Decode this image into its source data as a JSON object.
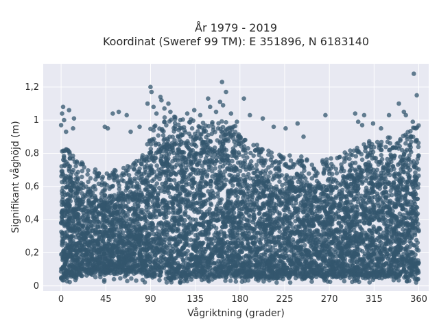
{
  "chart_data": {
    "type": "scatter",
    "title": "År 1979 - 2019",
    "subtitle": "Koordinat (Sweref 99 TM): E 351896, N 6183140",
    "xlabel": "Vågriktning (grader)",
    "ylabel": "Signifikant våghöjd (m)",
    "xlim": [
      -18,
      370
    ],
    "ylim": [
      -0.03,
      1.34
    ],
    "xticks": [
      0,
      45,
      90,
      135,
      180,
      225,
      270,
      315,
      360
    ],
    "xtick_labels": [
      "0",
      "45",
      "90",
      "135",
      "180",
      "225",
      "270",
      "315",
      "360"
    ],
    "yticks": [
      0,
      0.2,
      0.4,
      0.6,
      0.8,
      1,
      1.2
    ],
    "ytick_labels": [
      "0",
      "0,2",
      "0,4",
      "0,6",
      "0,8",
      "1",
      "1,2"
    ],
    "grid": true,
    "legend": "none",
    "marker_color": "#33566e",
    "background_color": "#e8e9f2",
    "dense_envelope": {
      "x": [
        0,
        10,
        20,
        30,
        45,
        60,
        75,
        85,
        90,
        100,
        110,
        125,
        135,
        150,
        165,
        175,
        180,
        190,
        200,
        215,
        225,
        240,
        250,
        260,
        270,
        285,
        300,
        315,
        330,
        345,
        355,
        360
      ],
      "y_low": [
        0.06,
        0.06,
        0.07,
        0.07,
        0.08,
        0.08,
        0.08,
        0.07,
        0.06,
        0.06,
        0.06,
        0.06,
        0.06,
        0.06,
        0.06,
        0.06,
        0.06,
        0.06,
        0.06,
        0.06,
        0.06,
        0.06,
        0.06,
        0.06,
        0.06,
        0.06,
        0.06,
        0.06,
        0.06,
        0.06,
        0.06,
        0.06
      ],
      "y_high": [
        0.72,
        0.66,
        0.6,
        0.56,
        0.54,
        0.56,
        0.6,
        0.66,
        0.8,
        0.86,
        0.88,
        0.86,
        0.86,
        0.86,
        0.84,
        0.82,
        0.78,
        0.72,
        0.7,
        0.66,
        0.64,
        0.64,
        0.62,
        0.62,
        0.62,
        0.66,
        0.7,
        0.74,
        0.76,
        0.78,
        0.82,
        0.84
      ]
    },
    "outliers": [
      {
        "x": 2,
        "y": 1.08
      },
      {
        "x": 1,
        "y": 1.04
      },
      {
        "x": 3,
        "y": 1.0
      },
      {
        "x": 0,
        "y": 0.97
      },
      {
        "x": 8,
        "y": 1.06
      },
      {
        "x": 13,
        "y": 1.01
      },
      {
        "x": 12,
        "y": 0.95
      },
      {
        "x": 5,
        "y": 0.93
      },
      {
        "x": 44,
        "y": 0.96
      },
      {
        "x": 47,
        "y": 0.95
      },
      {
        "x": 52,
        "y": 1.04
      },
      {
        "x": 58,
        "y": 1.05
      },
      {
        "x": 66,
        "y": 1.03
      },
      {
        "x": 70,
        "y": 0.93
      },
      {
        "x": 79,
        "y": 0.96
      },
      {
        "x": 87,
        "y": 1.1
      },
      {
        "x": 90,
        "y": 1.2
      },
      {
        "x": 91,
        "y": 1.17
      },
      {
        "x": 93,
        "y": 1.08
      },
      {
        "x": 96,
        "y": 1.04
      },
      {
        "x": 100,
        "y": 1.14
      },
      {
        "x": 101,
        "y": 1.12
      },
      {
        "x": 104,
        "y": 1.07
      },
      {
        "x": 108,
        "y": 1.1
      },
      {
        "x": 110,
        "y": 1.05
      },
      {
        "x": 114,
        "y": 1.02
      },
      {
        "x": 120,
        "y": 1.0
      },
      {
        "x": 127,
        "y": 1.04
      },
      {
        "x": 134,
        "y": 1.06
      },
      {
        "x": 140,
        "y": 1.03
      },
      {
        "x": 148,
        "y": 1.13
      },
      {
        "x": 150,
        "y": 1.08
      },
      {
        "x": 156,
        "y": 1.05
      },
      {
        "x": 160,
        "y": 1.11
      },
      {
        "x": 162,
        "y": 1.23
      },
      {
        "x": 166,
        "y": 1.17
      },
      {
        "x": 163,
        "y": 1.09
      },
      {
        "x": 171,
        "y": 1.04
      },
      {
        "x": 177,
        "y": 0.99
      },
      {
        "x": 184,
        "y": 1.13
      },
      {
        "x": 190,
        "y": 1.03
      },
      {
        "x": 203,
        "y": 1.01
      },
      {
        "x": 214,
        "y": 0.96
      },
      {
        "x": 226,
        "y": 0.95
      },
      {
        "x": 238,
        "y": 0.98
      },
      {
        "x": 244,
        "y": 0.9
      },
      {
        "x": 266,
        "y": 1.03
      },
      {
        "x": 296,
        "y": 1.04
      },
      {
        "x": 299,
        "y": 0.99
      },
      {
        "x": 303,
        "y": 0.97
      },
      {
        "x": 305,
        "y": 1.03
      },
      {
        "x": 314,
        "y": 0.98
      },
      {
        "x": 322,
        "y": 0.95
      },
      {
        "x": 330,
        "y": 1.03
      },
      {
        "x": 340,
        "y": 1.1
      },
      {
        "x": 345,
        "y": 1.05
      },
      {
        "x": 347,
        "y": 1.03
      },
      {
        "x": 355,
        "y": 1.28
      },
      {
        "x": 358,
        "y": 1.15
      },
      {
        "x": 354,
        "y": 0.99
      },
      {
        "x": 357,
        "y": 0.95
      }
    ]
  }
}
